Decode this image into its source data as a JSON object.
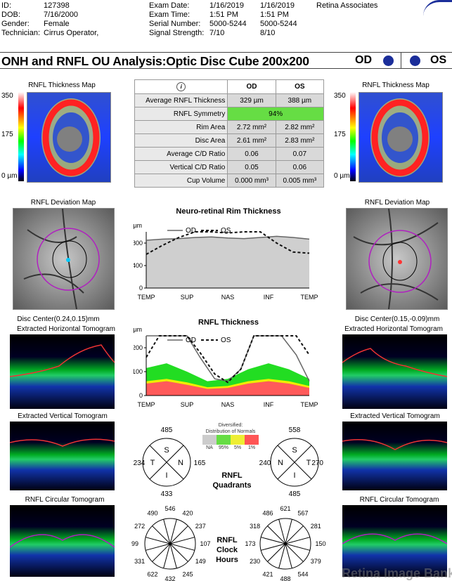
{
  "header": {
    "id_label": "ID:",
    "id_value": "127398",
    "dob_label": "DOB:",
    "dob_value": "7/16/2000",
    "gender_label": "Gender:",
    "gender_value": "Female",
    "tech_label": "Technician:",
    "tech_value": "Cirrus Operator,",
    "exam_date_label": "Exam Date:",
    "exam_date_od": "1/16/2019",
    "exam_date_os": "1/16/2019",
    "exam_time_label": "Exam Time:",
    "exam_time_od": "1:51 PM",
    "exam_time_os": "1:51 PM",
    "serial_label": "Serial Number:",
    "serial_od": "5000-5244",
    "serial_os": "5000-5244",
    "signal_label": "Signal Strength:",
    "signal_od": "7/10",
    "signal_os": "8/10",
    "practice": "Retina Associates"
  },
  "title": {
    "text": "ONH and RNFL OU Analysis:Optic Disc Cube 200x200",
    "od": "OD",
    "os": "OS",
    "eye_color": "#1b2e9a"
  },
  "maps": {
    "thickness_map_label": "RNFL Thickness Map",
    "scale_top": "350",
    "scale_mid": "175",
    "scale_bottom": "0 µm",
    "deviation_map_label": "RNFL Deviation Map",
    "disc_center_od": "Disc Center(0.24,0.15)mm",
    "disc_center_os": "Disc Center(0.15,-0.09)mm",
    "horizontal_tomogram": "Extracted Horizontal Tomogram",
    "vertical_tomogram": "Extracted Vertical Tomogram",
    "circular_tomogram": "RNFL Circular Tomogram"
  },
  "table": {
    "info_icon": "info-icon",
    "col_od": "OD",
    "col_os": "OS",
    "rows": [
      {
        "label": "Average RNFL Thickness",
        "od": "329 µm",
        "os": "388 µm"
      },
      {
        "label": "RNFL Symmetry",
        "merged": "94%"
      },
      {
        "label": "Rim Area",
        "od": "2.72 mm²",
        "os": "2.82 mm²"
      },
      {
        "label": "Disc Area",
        "od": "2.61 mm²",
        "os": "2.83 mm²"
      },
      {
        "label": "Average C/D Ratio",
        "od": "0.06",
        "os": "0.07"
      },
      {
        "label": "Vertical C/D Ratio",
        "od": "0.05",
        "os": "0.06"
      },
      {
        "label": "Cup Volume",
        "od": "0.000 mm³",
        "os": "0.005 mm³"
      }
    ],
    "symmetry_color": "#66dd44"
  },
  "chart_data": [
    {
      "type": "line",
      "title": "Neuro-retinal Rim Thickness",
      "ylabel": "µm",
      "yticks": [
        "800",
        "400",
        "0"
      ],
      "ylim": [
        0,
        1000
      ],
      "xticks": [
        "TEMP",
        "SUP",
        "NAS",
        "INF",
        "TEMP"
      ],
      "x": [
        0,
        10,
        20,
        30,
        40,
        50,
        60,
        70,
        80,
        90,
        100
      ],
      "series": [
        {
          "name": "OD",
          "style": "solid",
          "values": [
            850,
            870,
            880,
            900,
            910,
            890,
            880,
            900,
            920,
            900,
            870
          ]
        },
        {
          "name": "OS",
          "style": "dashed",
          "values": [
            600,
            760,
            900,
            1000,
            1000,
            980,
            1000,
            1000,
            800,
            640,
            620
          ]
        }
      ]
    },
    {
      "type": "line",
      "title": "RNFL Thickness",
      "ylabel": "µm",
      "yticks": [
        "200",
        "100",
        "0"
      ],
      "ylim": [
        0,
        250
      ],
      "xticks": [
        "TEMP",
        "SUP",
        "NAS",
        "INF",
        "TEMP"
      ],
      "x": [
        0,
        8,
        16,
        25,
        33,
        42,
        50,
        58,
        66,
        75,
        83,
        92,
        100
      ],
      "series": [
        {
          "name": "OD",
          "style": "solid",
          "values": [
            250,
            250,
            250,
            250,
            160,
            70,
            60,
            110,
            250,
            250,
            250,
            170,
            60
          ]
        },
        {
          "name": "OS",
          "style": "dashed",
          "values": [
            160,
            250,
            250,
            250,
            180,
            90,
            55,
            110,
            250,
            250,
            250,
            250,
            170
          ]
        }
      ],
      "normative_colors": [
        "#ffffff",
        "#22cc22",
        "#eeee00",
        "#ff5555"
      ]
    }
  ],
  "legend": {
    "title1": "Diversified:",
    "title2": "Distribution of Normals",
    "labels": [
      "NA",
      "95%",
      "5%",
      "1%"
    ],
    "colors": [
      "#cccccc",
      "#66dd44",
      "#eeee33",
      "#ff5555"
    ]
  },
  "quadrants": {
    "label_line1": "RNFL",
    "label_line2": "Quadrants",
    "od": {
      "top": "485",
      "left": "234",
      "right": "165",
      "bottom": "433"
    },
    "os": {
      "top": "558",
      "left": "240",
      "right": "270",
      "bottom": "485"
    },
    "letters": [
      "S",
      "T",
      "N",
      "I"
    ]
  },
  "clock_hours": {
    "label_line1": "RNFL",
    "label_line2": "Clock",
    "label_line3": "Hours",
    "od": [
      "546",
      "420",
      "237",
      "107",
      "149",
      "245",
      "432",
      "622",
      "331",
      "99",
      "272",
      "490"
    ],
    "os": [
      "621",
      "567",
      "281",
      "150",
      "379",
      "544",
      "488",
      "421",
      "230",
      "173",
      "318",
      "486"
    ]
  },
  "watermark": "Retina Image Bank"
}
